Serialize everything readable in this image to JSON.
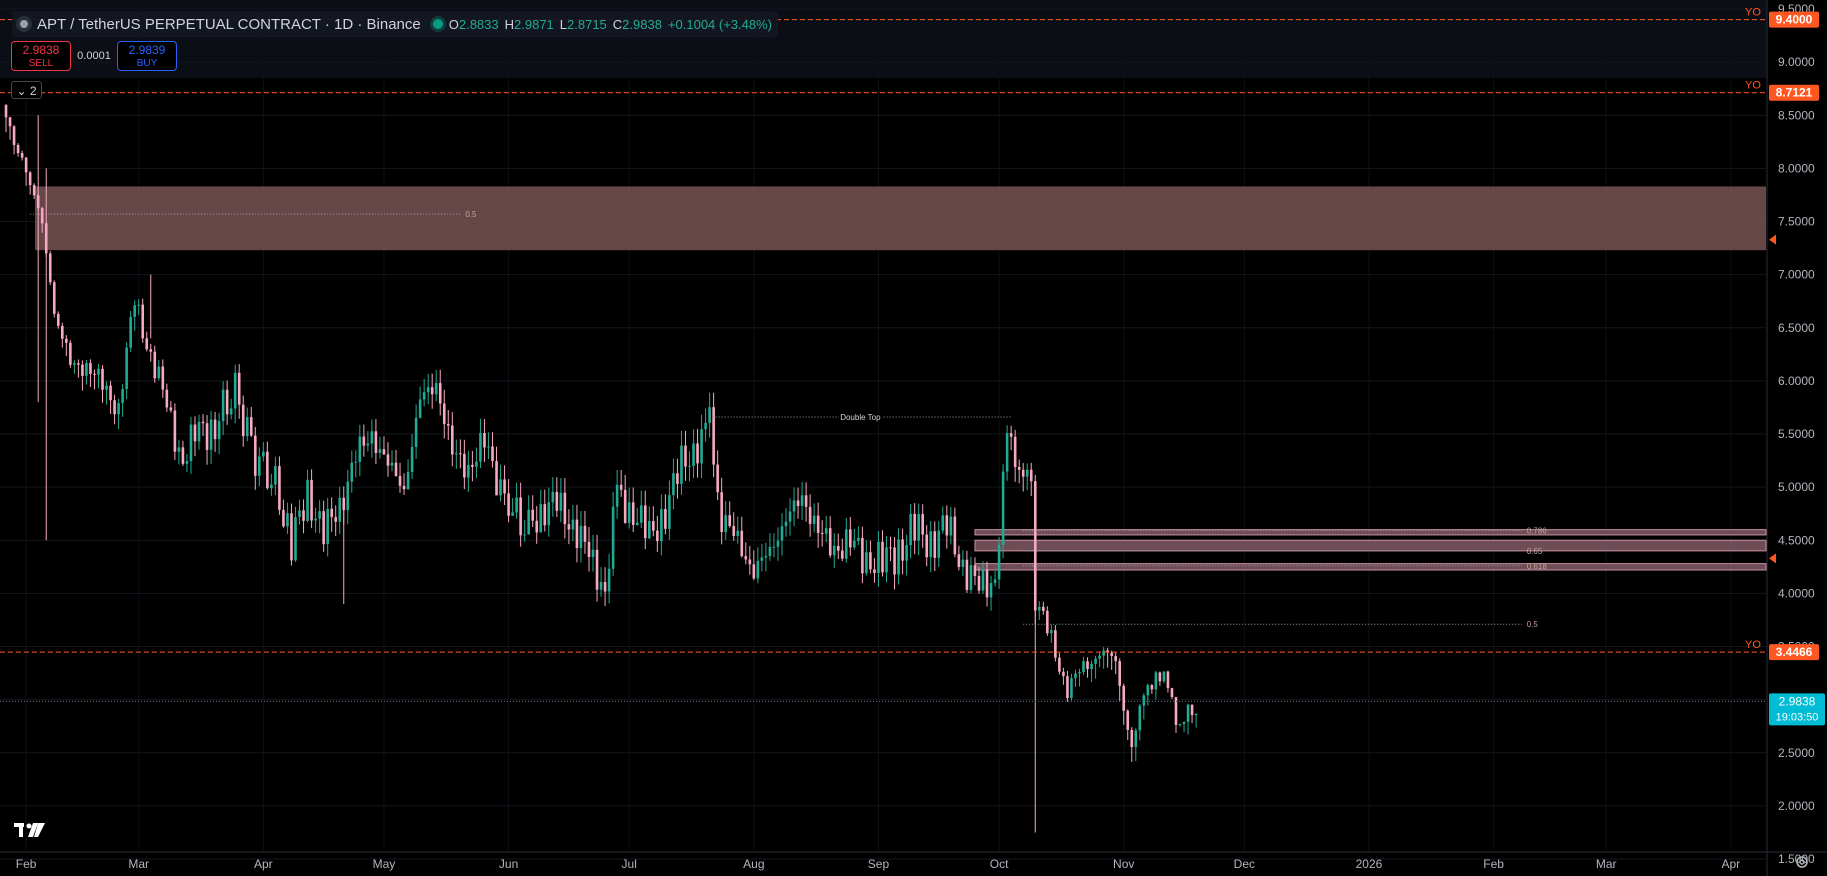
{
  "header": {
    "title": "APT / TetherUS PERPETUAL CONTRACT · 1D · Binance",
    "open_label": "O",
    "open_value": "2.8833",
    "high_label": "H",
    "high_value": "2.9871",
    "low_label": "L",
    "low_value": "2.8715",
    "close_label": "C",
    "close_value": "2.9838",
    "change_value": "+0.1004 (+3.48%)"
  },
  "trade": {
    "sell_price": "2.9838",
    "sell_label": "SELL",
    "spread": "0.0001",
    "buy_price": "2.9839",
    "buy_label": "BUY"
  },
  "indicators_toggle": {
    "count": "2"
  },
  "colors": {
    "bullish": "#22ab94",
    "bearish": "#f7a9c0",
    "level": "#ff5722",
    "current": "#00bcd4",
    "zone": "#785355"
  },
  "chart_data": {
    "type": "candlestick",
    "symbol": "APT / TetherUS PERPETUAL CONTRACT",
    "interval": "1D",
    "exchange": "Binance",
    "ylim": [
      1.3,
      9.55
    ],
    "y_ticks": [
      "9.5000",
      "9.0000",
      "8.5000",
      "8.0000",
      "7.5000",
      "7.0000",
      "6.5000",
      "6.0000",
      "5.5000",
      "5.0000",
      "4.5000",
      "4.0000",
      "3.5000",
      "3.0000",
      "2.5000",
      "2.0000",
      "1.5000"
    ],
    "x_ticks": [
      "Feb",
      "Mar",
      "Apr",
      "May",
      "Jun",
      "Jul",
      "Aug",
      "Sep",
      "Oct",
      "Nov",
      "Dec",
      "2026",
      "Feb",
      "Mar",
      "Apr"
    ],
    "x_range": [
      "2025-01-26",
      "2026-04-10"
    ],
    "levels": [
      {
        "label": "YO",
        "value": 9.4,
        "value_text": "9.4000"
      },
      {
        "label": "YO",
        "value": 8.7121,
        "value_text": "8.7121"
      },
      {
        "label": "YO",
        "value": 3.4466,
        "value_text": "3.4466"
      }
    ],
    "current_price": {
      "value": 2.9838,
      "value_text": "2.9838",
      "countdown": "19:03:50"
    },
    "zones": [
      {
        "from_date": "2025-01-26",
        "to_date": "2026-04-10",
        "top": 7.83,
        "bottom": 7.23
      },
      {
        "from_date": "2025-09-25",
        "to_date": "2026-04-10",
        "top": 4.6,
        "bottom": 4.55
      },
      {
        "from_date": "2025-09-25",
        "to_date": "2026-04-10",
        "top": 4.5,
        "bottom": 4.4
      },
      {
        "from_date": "2025-09-25",
        "to_date": "2026-04-10",
        "top": 4.28,
        "bottom": 4.22
      }
    ],
    "fib_lines": [
      {
        "label": "0.5",
        "value": 7.57,
        "from_date": "2025-02-02",
        "to_date": "2025-05-20"
      },
      {
        "label": "0.786",
        "value": 4.59,
        "from_date": "2025-10-07",
        "to_date": "2026-02-08"
      },
      {
        "label": "0.65",
        "value": 4.4,
        "from_date": "2025-10-07",
        "to_date": "2026-02-08"
      },
      {
        "label": "0.618",
        "value": 4.26,
        "from_date": "2025-10-07",
        "to_date": "2026-02-08"
      },
      {
        "label": "0.5",
        "value": 3.71,
        "from_date": "2025-10-07",
        "to_date": "2026-02-08"
      }
    ],
    "annotations": [
      {
        "text": "Double Top",
        "value": 5.66,
        "from_date": "2025-07-21",
        "to_date": "2025-10-04"
      }
    ],
    "candles": [
      {
        "date": "2025-01-27",
        "close": 8.4
      },
      {
        "date": "2025-02-01",
        "close": 8.05
      },
      {
        "date": "2025-02-05",
        "close": 7.4
      },
      {
        "date": "2025-02-08",
        "close": 6.7
      },
      {
        "date": "2025-02-12",
        "close": 6.1
      },
      {
        "date": "2025-02-16",
        "close": 6.2
      },
      {
        "date": "2025-02-20",
        "close": 5.9
      },
      {
        "date": "2025-02-24",
        "close": 5.8
      },
      {
        "date": "2025-02-28",
        "close": 6.7
      },
      {
        "date": "2025-03-04",
        "close": 6.3
      },
      {
        "date": "2025-03-08",
        "close": 5.7
      },
      {
        "date": "2025-03-12",
        "close": 5.3
      },
      {
        "date": "2025-03-16",
        "close": 5.5
      },
      {
        "date": "2025-03-20",
        "close": 5.6
      },
      {
        "date": "2025-03-25",
        "close": 5.9
      },
      {
        "date": "2025-03-30",
        "close": 5.3
      },
      {
        "date": "2025-04-04",
        "close": 5.0
      },
      {
        "date": "2025-04-08",
        "close": 4.5
      },
      {
        "date": "2025-04-12",
        "close": 4.9
      },
      {
        "date": "2025-04-16",
        "close": 4.6
      },
      {
        "date": "2025-04-20",
        "close": 4.8
      },
      {
        "date": "2025-04-24",
        "close": 5.3
      },
      {
        "date": "2025-04-28",
        "close": 5.5
      },
      {
        "date": "2025-05-02",
        "close": 5.2
      },
      {
        "date": "2025-05-06",
        "close": 5.0
      },
      {
        "date": "2025-05-10",
        "close": 5.8
      },
      {
        "date": "2025-05-14",
        "close": 6.0
      },
      {
        "date": "2025-05-18",
        "close": 5.3
      },
      {
        "date": "2025-05-22",
        "close": 5.2
      },
      {
        "date": "2025-05-26",
        "close": 5.4
      },
      {
        "date": "2025-05-31",
        "close": 4.9
      },
      {
        "date": "2025-06-05",
        "close": 4.6
      },
      {
        "date": "2025-06-09",
        "close": 4.8
      },
      {
        "date": "2025-06-13",
        "close": 4.8
      },
      {
        "date": "2025-06-17",
        "close": 4.7
      },
      {
        "date": "2025-06-21",
        "close": 4.3
      },
      {
        "date": "2025-06-25",
        "close": 4.1
      },
      {
        "date": "2025-06-28",
        "close": 4.9
      },
      {
        "date": "2025-07-02",
        "close": 4.8
      },
      {
        "date": "2025-07-06",
        "close": 4.5
      },
      {
        "date": "2025-07-10",
        "close": 4.8
      },
      {
        "date": "2025-07-14",
        "close": 5.2
      },
      {
        "date": "2025-07-18",
        "close": 5.4
      },
      {
        "date": "2025-07-21",
        "close": 5.6
      },
      {
        "date": "2025-07-24",
        "close": 4.7
      },
      {
        "date": "2025-07-28",
        "close": 4.5
      },
      {
        "date": "2025-08-01",
        "close": 4.2
      },
      {
        "date": "2025-08-05",
        "close": 4.4
      },
      {
        "date": "2025-08-09",
        "close": 4.7
      },
      {
        "date": "2025-08-13",
        "close": 4.9
      },
      {
        "date": "2025-08-17",
        "close": 4.6
      },
      {
        "date": "2025-08-21",
        "close": 4.4
      },
      {
        "date": "2025-08-25",
        "close": 4.5
      },
      {
        "date": "2025-08-29",
        "close": 4.3
      },
      {
        "date": "2025-09-02",
        "close": 4.3
      },
      {
        "date": "2025-09-06",
        "close": 4.4
      },
      {
        "date": "2025-09-10",
        "close": 4.6
      },
      {
        "date": "2025-09-14",
        "close": 4.5
      },
      {
        "date": "2025-09-18",
        "close": 4.6
      },
      {
        "date": "2025-09-22",
        "close": 4.3
      },
      {
        "date": "2025-09-26",
        "close": 4.0
      },
      {
        "date": "2025-09-30",
        "close": 4.2
      },
      {
        "date": "2025-10-03",
        "close": 5.4
      },
      {
        "date": "2025-10-06",
        "close": 5.3
      },
      {
        "date": "2025-10-09",
        "close": 4.9
      },
      {
        "date": "2025-10-10",
        "close": 4.0
      },
      {
        "date": "2025-10-14",
        "close": 3.5
      },
      {
        "date": "2025-10-18",
        "close": 3.15
      },
      {
        "date": "2025-10-22",
        "close": 3.25
      },
      {
        "date": "2025-10-26",
        "close": 3.5
      },
      {
        "date": "2025-10-30",
        "close": 3.3
      },
      {
        "date": "2025-11-03",
        "close": 2.6
      },
      {
        "date": "2025-11-06",
        "close": 3.0
      },
      {
        "date": "2025-11-09",
        "close": 3.3
      },
      {
        "date": "2025-11-12",
        "close": 3.05
      },
      {
        "date": "2025-11-15",
        "close": 2.85
      },
      {
        "date": "2025-11-18",
        "close": 2.75
      },
      {
        "date": "2025-11-20",
        "close": 2.98
      }
    ]
  }
}
